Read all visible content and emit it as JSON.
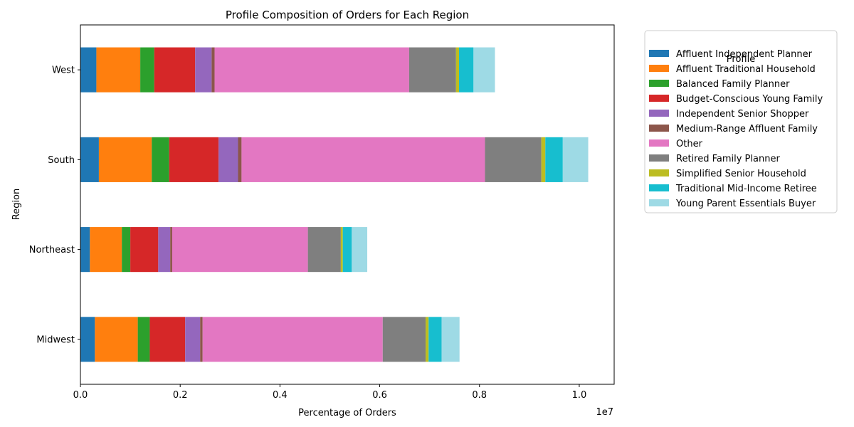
{
  "chart_data": {
    "type": "bar",
    "orientation": "horizontal",
    "stacked": true,
    "title": "Profile Composition of Orders for Each Region",
    "xlabel": "Percentage of Orders",
    "ylabel": "Region",
    "x_offset_label": "1e7",
    "xlim": [
      0,
      10700000
    ],
    "x_ticks": [
      0,
      2000000,
      4000000,
      6000000,
      8000000,
      10000000
    ],
    "x_tick_labels": [
      "0.0",
      "0.2",
      "0.4",
      "0.6",
      "0.8",
      "1.0"
    ],
    "grid": false,
    "legend_title": "Profile",
    "legend_position": "outside-right-top",
    "categories": [
      "Midwest",
      "Northeast",
      "South",
      "West"
    ],
    "series": [
      {
        "name": "Affluent Independent Planner",
        "color": "#1f77b4",
        "values": [
          290000,
          190000,
          370000,
          320000
        ]
      },
      {
        "name": "Affluent Traditional Household",
        "color": "#ff7f0e",
        "values": [
          860000,
          640000,
          1060000,
          880000
        ]
      },
      {
        "name": "Balanced Family Planner",
        "color": "#2ca02c",
        "values": [
          240000,
          170000,
          350000,
          280000
        ]
      },
      {
        "name": "Budget-Conscious Young Family",
        "color": "#d62728",
        "values": [
          710000,
          560000,
          990000,
          820000
        ]
      },
      {
        "name": "Independent Senior Shopper",
        "color": "#9467bd",
        "values": [
          300000,
          240000,
          390000,
          330000
        ]
      },
      {
        "name": "Medium-Range Affluent Family",
        "color": "#8c564b",
        "values": [
          50000,
          40000,
          70000,
          60000
        ]
      },
      {
        "name": "Other",
        "color": "#e377c2",
        "values": [
          3610000,
          2720000,
          4880000,
          3900000
        ]
      },
      {
        "name": "Retired Family Planner",
        "color": "#7f7f7f",
        "values": [
          860000,
          660000,
          1130000,
          940000
        ]
      },
      {
        "name": "Simplified Senior Household",
        "color": "#bcbd22",
        "values": [
          60000,
          40000,
          80000,
          60000
        ]
      },
      {
        "name": "Traditional Mid-Income Retiree",
        "color": "#17becf",
        "values": [
          260000,
          180000,
          350000,
          290000
        ]
      },
      {
        "name": "Young Parent Essentials Buyer",
        "color": "#9edae5",
        "values": [
          360000,
          310000,
          510000,
          430000
        ]
      }
    ]
  }
}
